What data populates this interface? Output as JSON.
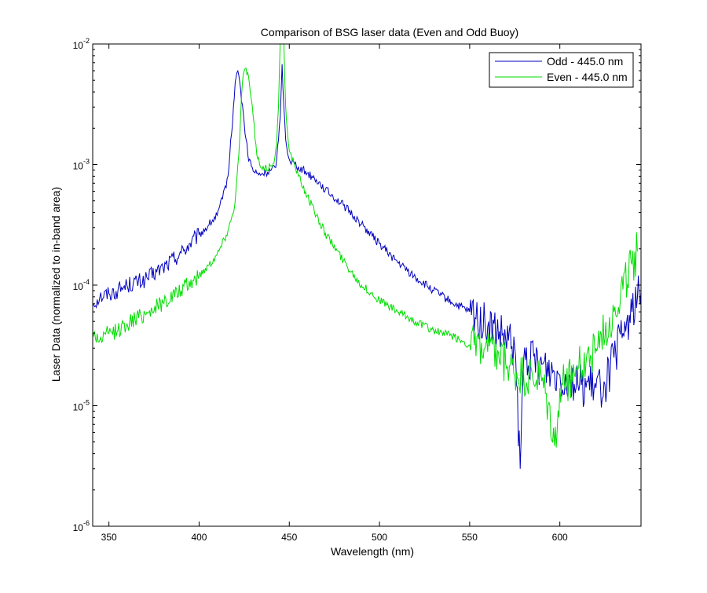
{
  "chart_data": {
    "type": "line",
    "title": "Comparison of BSG laser data (Even and Odd Buoy)",
    "xlabel": "Wavelength (nm)",
    "ylabel": "Laser Data (normalized to in-band area)",
    "xlim": [
      341,
      645
    ],
    "ylim": [
      1e-06,
      0.01
    ],
    "yscale": "log",
    "grid": false,
    "legend_position": "top-right",
    "xticks": [
      350,
      400,
      450,
      500,
      550,
      600
    ],
    "xtick_labels": [
      "350",
      "400",
      "450",
      "500",
      "550",
      "600"
    ],
    "yticks": [
      1e-06,
      1e-05,
      0.0001,
      0.001,
      0.01
    ],
    "ytick_labels": [
      {
        "base": "10",
        "exp": "-6"
      },
      {
        "base": "10",
        "exp": "-5"
      },
      {
        "base": "10",
        "exp": "-4"
      },
      {
        "base": "10",
        "exp": "-3"
      },
      {
        "base": "10",
        "exp": "-2"
      }
    ],
    "series": [
      {
        "name": "Odd - 445.0 nm",
        "color": "#0000bf",
        "points": [
          [
            341,
            7e-05
          ],
          [
            345,
            8e-05
          ],
          [
            350,
            8.5e-05
          ],
          [
            355,
            9e-05
          ],
          [
            360,
            0.0001
          ],
          [
            370,
            0.00011
          ],
          [
            380,
            0.00014
          ],
          [
            390,
            0.000185
          ],
          [
            400,
            0.00026
          ],
          [
            405,
            0.00031
          ],
          [
            410,
            0.00038
          ],
          [
            413,
            0.00052
          ],
          [
            416,
            0.0008
          ],
          [
            418,
            0.0018
          ],
          [
            420,
            0.0048
          ],
          [
            421,
            0.0058
          ],
          [
            422,
            0.0055
          ],
          [
            423,
            0.0042
          ],
          [
            425,
            0.0022
          ],
          [
            427,
            0.0012
          ],
          [
            430,
            0.00088
          ],
          [
            433,
            0.00082
          ],
          [
            437,
            0.00085
          ],
          [
            440,
            0.0009
          ],
          [
            442,
            0.00095
          ],
          [
            443,
            0.0011
          ],
          [
            444,
            0.0016
          ],
          [
            445,
            0.0025
          ],
          [
            446,
            0.0068
          ],
          [
            447,
            0.003
          ],
          [
            448,
            0.0016
          ],
          [
            450,
            0.0011
          ],
          [
            455,
            0.00096
          ],
          [
            460,
            0.00085
          ],
          [
            465,
            0.00075
          ],
          [
            470,
            0.00062
          ],
          [
            480,
            0.00046
          ],
          [
            490,
            0.00032
          ],
          [
            500,
            0.00022
          ],
          [
            510,
            0.000155
          ],
          [
            520,
            0.000115
          ],
          [
            530,
            9e-05
          ],
          [
            540,
            7.2e-05
          ],
          [
            550,
            6e-05
          ],
          [
            560,
            4.5e-05
          ],
          [
            570,
            3.5e-05
          ],
          [
            575,
            3e-05
          ],
          [
            578,
            3e-06
          ],
          [
            580,
            2.5e-05
          ],
          [
            590,
            2.2e-05
          ],
          [
            600,
            1.8e-05
          ],
          [
            610,
            1.5e-05
          ],
          [
            620,
            1.4e-05
          ],
          [
            625,
            1.5e-05
          ],
          [
            630,
            2.5e-05
          ],
          [
            635,
            4e-05
          ],
          [
            640,
            6e-05
          ],
          [
            645,
            9e-05
          ]
        ]
      },
      {
        "name": "Even - 445.0 nm",
        "color": "#00dd00",
        "points": [
          [
            341,
            4e-05
          ],
          [
            345,
            3.5e-05
          ],
          [
            350,
            4e-05
          ],
          [
            355,
            4.2e-05
          ],
          [
            360,
            4.8e-05
          ],
          [
            370,
            5.8e-05
          ],
          [
            380,
            7.2e-05
          ],
          [
            390,
            9e-05
          ],
          [
            400,
            0.00012
          ],
          [
            405,
            0.000145
          ],
          [
            410,
            0.00018
          ],
          [
            415,
            0.00026
          ],
          [
            418,
            0.00036
          ],
          [
            420,
            0.0005
          ],
          [
            422,
            0.0012
          ],
          [
            423,
            0.0025
          ],
          [
            424,
            0.0048
          ],
          [
            425,
            0.006
          ],
          [
            426,
            0.0063
          ],
          [
            427,
            0.0058
          ],
          [
            428,
            0.0045
          ],
          [
            430,
            0.0025
          ],
          [
            432,
            0.0012
          ],
          [
            434,
            0.00095
          ],
          [
            436,
            0.0009
          ],
          [
            440,
            0.00098
          ],
          [
            442,
            0.00115
          ],
          [
            443,
            0.0015
          ],
          [
            444,
            0.003
          ],
          [
            445,
            0.012
          ],
          [
            447,
            0.01
          ],
          [
            448,
            0.003
          ],
          [
            450,
            0.0013
          ],
          [
            455,
            0.0008
          ],
          [
            460,
            0.00055
          ],
          [
            465,
            0.00038
          ],
          [
            470,
            0.00027
          ],
          [
            480,
            0.00016
          ],
          [
            490,
            0.0001
          ],
          [
            500,
            7.5e-05
          ],
          [
            510,
            6e-05
          ],
          [
            520,
            5e-05
          ],
          [
            530,
            4.2e-05
          ],
          [
            540,
            3.8e-05
          ],
          [
            550,
            3.2e-05
          ],
          [
            560,
            2.8e-05
          ],
          [
            570,
            2.2e-05
          ],
          [
            575,
            1.8e-05
          ],
          [
            580,
            1.7e-05
          ],
          [
            590,
            1.6e-05
          ],
          [
            598,
            4.5e-06
          ],
          [
            600,
            1.4e-05
          ],
          [
            610,
            2e-05
          ],
          [
            620,
            3e-05
          ],
          [
            630,
            6e-05
          ],
          [
            640,
            0.00015
          ],
          [
            643,
            0.00019
          ]
        ]
      }
    ]
  }
}
